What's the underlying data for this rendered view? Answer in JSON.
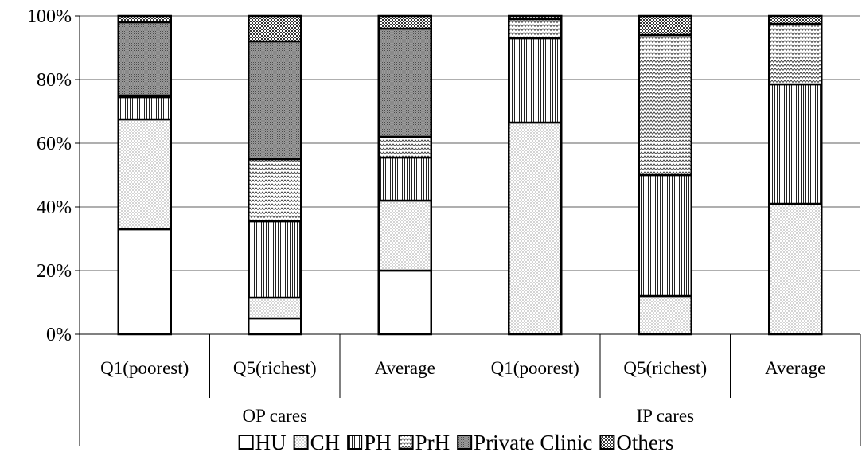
{
  "chart_data": {
    "type": "bar",
    "stacked": true,
    "percent_axis": true,
    "groups": [
      {
        "label": "OP cares",
        "categories": [
          "Q1(poorest)",
          "Q5(richest)",
          "Average"
        ]
      },
      {
        "label": "IP cares",
        "categories": [
          "Q1(poorest)",
          "Q5(richest)",
          "Average"
        ]
      }
    ],
    "categories": [
      "Q1(poorest)",
      "Q5(richest)",
      "Average",
      "Q1(poorest)",
      "Q5(richest)",
      "Average"
    ],
    "series": [
      {
        "name": "HU",
        "pattern": "blank",
        "values": [
          33,
          5,
          20,
          0,
          0,
          0
        ]
      },
      {
        "name": "CH",
        "pattern": "dots",
        "values": [
          34.5,
          6.5,
          22,
          66.5,
          12,
          41
        ]
      },
      {
        "name": "PH",
        "pattern": "vertical-lines",
        "values": [
          7,
          24,
          13.5,
          26.5,
          38,
          37.5
        ]
      },
      {
        "name": "PrH",
        "pattern": "zigzag",
        "values": [
          0.5,
          19.5,
          6.5,
          6,
          44,
          19
        ]
      },
      {
        "name": "Private Clinic",
        "pattern": "dense",
        "values": [
          23,
          37,
          34,
          0,
          0,
          0
        ]
      },
      {
        "name": "Others",
        "pattern": "checker",
        "values": [
          2,
          8,
          4,
          1,
          6,
          2.5
        ]
      }
    ],
    "ylim": [
      0,
      100
    ],
    "yticks": [
      "0%",
      "20%",
      "40%",
      "60%",
      "80%",
      "100%"
    ],
    "ytick_values": [
      0,
      20,
      40,
      60,
      80,
      100
    ],
    "grid": true,
    "legend_position": "bottom",
    "title": "",
    "xlabel": "",
    "ylabel": ""
  }
}
